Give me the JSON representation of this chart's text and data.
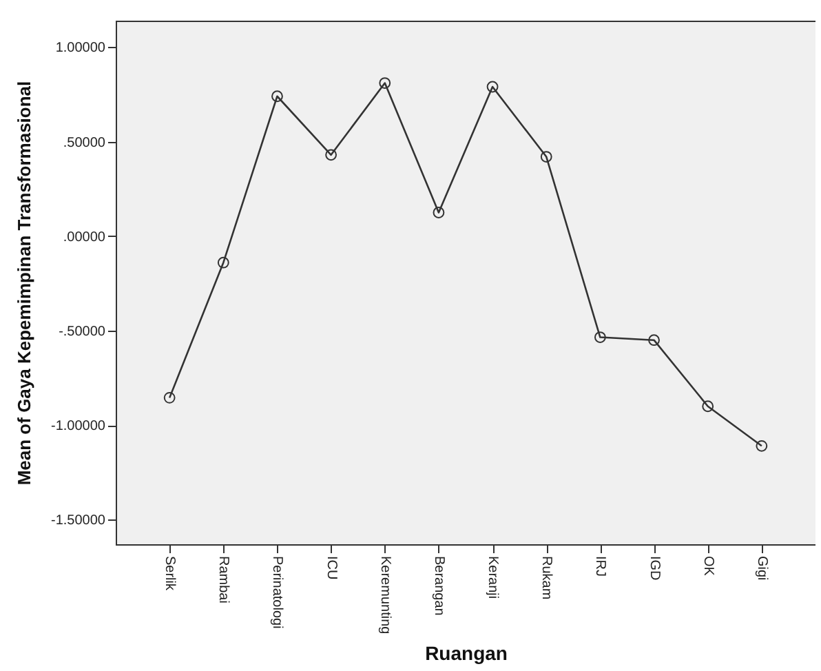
{
  "chart_data": {
    "type": "line",
    "xlabel": "Ruangan",
    "ylabel": "Mean of Gaya Kepemimpinan Transformasional",
    "categories": [
      "Serlik",
      "Rambai",
      "Perinatologi",
      "ICU",
      "Keremunting",
      "Berangan",
      "Keranji",
      "Rukam",
      "IRJ",
      "IGD",
      "OK",
      "Gigi"
    ],
    "series": [
      {
        "color": "#333333",
        "values": [
          -0.855,
          -0.14,
          0.74,
          0.43,
          0.81,
          0.125,
          0.79,
          0.42,
          -0.535,
          -0.55,
          -0.9,
          -1.11
        ]
      }
    ],
    "ylim": [
      -1.63,
      1.14
    ],
    "yticks": [
      {
        "value": -1.5,
        "label": "-1.50000"
      },
      {
        "value": -1,
        "label": "-1.00000"
      },
      {
        "value": -0.5,
        "label": "-.50000"
      },
      {
        "value": 0,
        "label": ".00000"
      },
      {
        "value": 0.5,
        "label": ".50000"
      },
      {
        "value": 1,
        "label": "1.00000"
      }
    ],
    "marker": "circle",
    "grid": false
  }
}
